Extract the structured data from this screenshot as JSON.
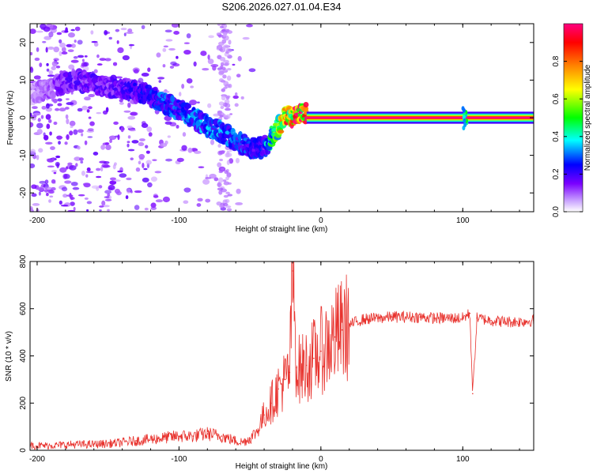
{
  "title": "S206.2026.027.01.04.E34",
  "chart_data": [
    {
      "type": "heatmap",
      "xlabel": "Height of straight line (km)",
      "ylabel": "Frequency (Hz)",
      "xlim": [
        -205,
        150
      ],
      "ylim": [
        -25,
        25
      ],
      "xticks": [
        -200,
        -100,
        0,
        100
      ],
      "yticks": [
        -20,
        -10,
        0,
        10,
        20
      ],
      "colorbar": {
        "label": "Normalized spectral amplitude",
        "range": [
          0.0,
          1.0
        ],
        "ticks": [
          0.0,
          0.2,
          0.4,
          0.6,
          0.8
        ],
        "tick_labels": [
          "0.0",
          "0.2",
          "0.4",
          "0.6",
          "0.8"
        ],
        "colormap": [
          "#ffffff",
          "#7a00ff",
          "#0000ff",
          "#00ffff",
          "#00ff00",
          "#ffff00",
          "#ff7f00",
          "#ff0000",
          "#ff0080"
        ]
      },
      "ridge": {
        "x": [
          -205,
          -190,
          -175,
          -160,
          -145,
          -130,
          -115,
          -100,
          -90,
          -80,
          -70,
          -60,
          -50,
          -40,
          -35,
          -25,
          -15,
          -5,
          0,
          10,
          20,
          40,
          60,
          80,
          100,
          120,
          150
        ],
        "y": [
          6,
          8,
          10,
          9,
          8,
          7,
          5,
          2,
          0,
          -2,
          -4,
          -6,
          -8,
          -8,
          -5,
          0,
          1,
          1,
          0,
          0,
          0,
          0,
          0,
          0,
          0,
          0,
          0
        ],
        "amplitude": [
          0.05,
          0.1,
          0.15,
          0.15,
          0.15,
          0.2,
          0.25,
          0.25,
          0.3,
          0.3,
          0.3,
          0.25,
          0.25,
          0.2,
          0.4,
          0.7,
          0.9,
          0.9,
          1.0,
          1.0,
          1.0,
          1.0,
          1.0,
          1.0,
          1.0,
          1.0,
          1.0
        ]
      }
    },
    {
      "type": "line",
      "xlabel": "Height of straight line (km)",
      "ylabel": "SNR (10 * v/v)",
      "xlim": [
        -205,
        150
      ],
      "ylim": [
        0,
        800
      ],
      "xticks": [
        -200,
        -100,
        0,
        100
      ],
      "yticks": [
        0,
        200,
        400,
        600,
        800
      ],
      "color": "#e8322d",
      "series": [
        {
          "name": "SNR",
          "x": [
            -205,
            -190,
            -175,
            -160,
            -145,
            -130,
            -115,
            -100,
            -90,
            -80,
            -70,
            -60,
            -55,
            -50,
            -45,
            -40,
            -35,
            -30,
            -25,
            -22,
            -20,
            -17,
            -15,
            -10,
            -5,
            0,
            5,
            10,
            15,
            20,
            25,
            30,
            40,
            50,
            60,
            70,
            80,
            90,
            100,
            105,
            107,
            110,
            115,
            120,
            130,
            140,
            150
          ],
          "y": [
            20,
            20,
            25,
            25,
            30,
            40,
            50,
            60,
            60,
            70,
            60,
            40,
            35,
            50,
            80,
            150,
            200,
            260,
            300,
            330,
            760,
            350,
            340,
            360,
            390,
            420,
            450,
            480,
            510,
            530,
            545,
            555,
            560,
            565,
            565,
            565,
            560,
            560,
            560,
            580,
            240,
            560,
            555,
            550,
            545,
            545,
            550
          ]
        }
      ]
    }
  ]
}
